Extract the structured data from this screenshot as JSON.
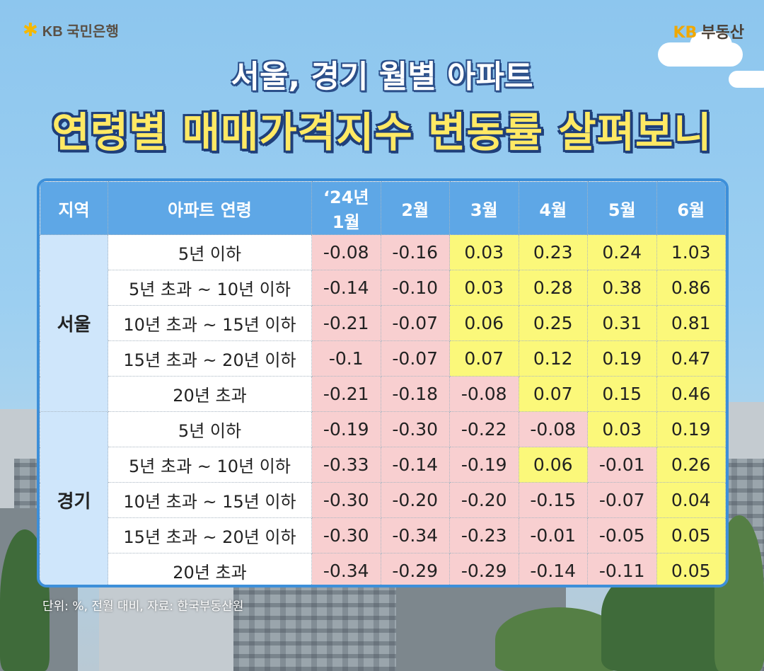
{
  "brand_left": {
    "icon": "kb-star-icon",
    "text": "KB 국민은행"
  },
  "brand_right": {
    "kb": "KB",
    "text": "부동산"
  },
  "title_line1": "서울, 경기 월별 아파트",
  "title_line2": "연령별 매매가격지수 변동률 살펴보니",
  "footnote": "단위: %, 전월 대비, 자료: 한국부동산원",
  "colors": {
    "negative_cell": "#f8cfd0",
    "positive_cell": "#fbf87a",
    "header": "#5ea7e6",
    "region_cell": "#cfe6fb",
    "title_yellow": "#ffe964"
  },
  "chart_data": {
    "type": "table",
    "columns": [
      "지역",
      "아파트 연령",
      "‘24년 1월",
      "2월",
      "3월",
      "4월",
      "5월",
      "6월"
    ],
    "groups": [
      {
        "region": "서울",
        "rows": [
          {
            "age": "5년 이하",
            "values": [
              "-0.08",
              "-0.16",
              "0.03",
              "0.23",
              "0.24",
              "1.03"
            ]
          },
          {
            "age": "5년 초과 ~ 10년 이하",
            "values": [
              "-0.14",
              "-0.10",
              "0.03",
              "0.28",
              "0.38",
              "0.86"
            ]
          },
          {
            "age": "10년 초과 ~ 15년 이하",
            "values": [
              "-0.21",
              "-0.07",
              "0.06",
              "0.25",
              "0.31",
              "0.81"
            ]
          },
          {
            "age": "15년 초과 ~ 20년 이하",
            "values": [
              "-0.1",
              "-0.07",
              "0.07",
              "0.12",
              "0.19",
              "0.47"
            ]
          },
          {
            "age": "20년 초과",
            "values": [
              "-0.21",
              "-0.18",
              "-0.08",
              "0.07",
              "0.15",
              "0.46"
            ]
          }
        ]
      },
      {
        "region": "경기",
        "rows": [
          {
            "age": "5년 이하",
            "values": [
              "-0.19",
              "-0.30",
              "-0.22",
              "-0.08",
              "0.03",
              "0.19"
            ]
          },
          {
            "age": "5년 초과 ~ 10년 이하",
            "values": [
              "-0.33",
              "-0.14",
              "-0.19",
              "0.06",
              "-0.01",
              "0.26"
            ]
          },
          {
            "age": "10년 초과 ~ 15년 이하",
            "values": [
              "-0.30",
              "-0.20",
              "-0.20",
              "-0.15",
              "-0.07",
              "0.04"
            ]
          },
          {
            "age": "15년 초과 ~ 20년 이하",
            "values": [
              "-0.30",
              "-0.34",
              "-0.23",
              "-0.01",
              "-0.05",
              "0.05"
            ]
          },
          {
            "age": "20년 초과",
            "values": [
              "-0.34",
              "-0.29",
              "-0.29",
              "-0.14",
              "-0.11",
              "0.05"
            ]
          }
        ]
      }
    ]
  }
}
